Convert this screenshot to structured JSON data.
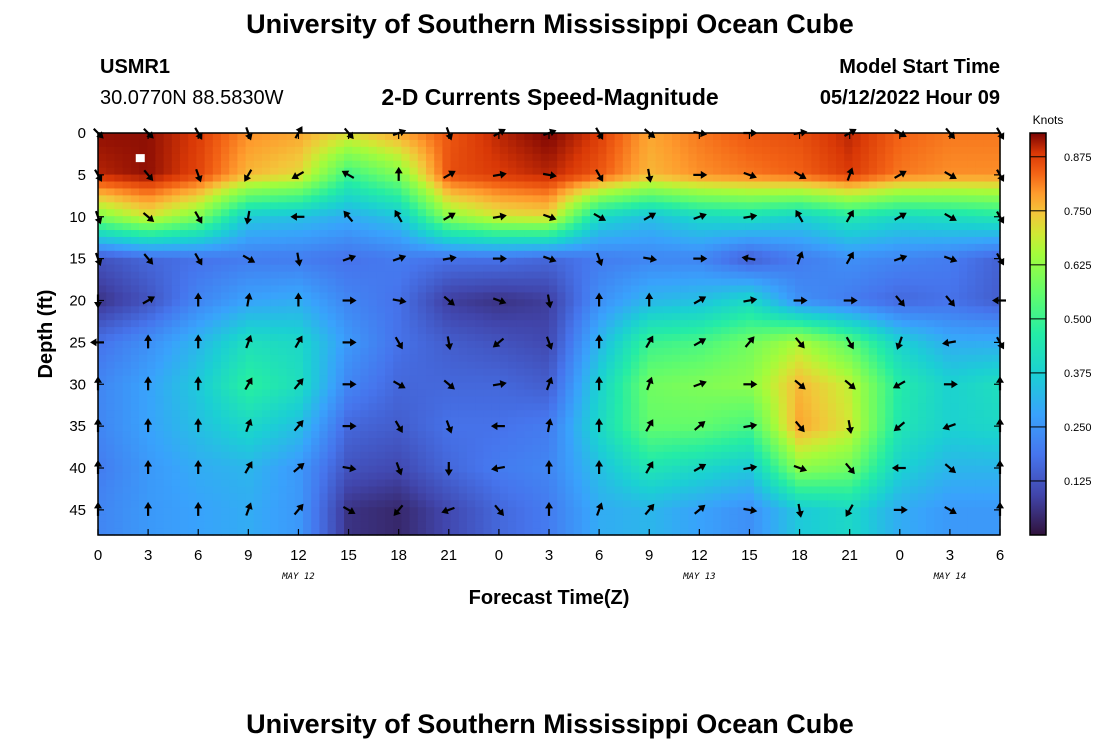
{
  "header": {
    "title": "University of Southern Mississippi Ocean Cube",
    "station_id": "USMR1",
    "station_coords": "30.0770N  88.5830W",
    "plot_title": "2-D Currents Speed-Magnitude",
    "model_start_label": "Model Start Time",
    "model_start_value": "05/12/2022 Hour 09"
  },
  "footer": {
    "title": "University of Southern Mississippi Ocean Cube"
  },
  "chart_data": {
    "type": "heatmap",
    "title": "2-D Currents Speed-Magnitude",
    "xlabel": "Forecast Time(Z)",
    "ylabel": "Depth (ft)",
    "x_ticks": [
      "0",
      "3",
      "6",
      "9",
      "12",
      "15",
      "18",
      "21",
      "0",
      "3",
      "6",
      "9",
      "12",
      "15",
      "18",
      "21",
      "0",
      "3",
      "6"
    ],
    "x_range_hours": [
      0,
      54
    ],
    "date_labels": [
      {
        "text": "MAY 12",
        "hour": 12
      },
      {
        "text": "MAY 13",
        "hour": 36
      },
      {
        "text": "MAY 14",
        "hour": 51
      }
    ],
    "y_ticks": [
      0,
      5,
      10,
      15,
      20,
      25,
      30,
      35,
      40,
      45
    ],
    "y_range": [
      0,
      48
    ],
    "y_inverted": true,
    "colorbar": {
      "label": "Knots",
      "ticks": [
        0.125,
        0.25,
        0.375,
        0.5,
        0.625,
        0.75,
        0.875
      ],
      "tick_labels": [
        "0.125",
        "0.250",
        "0.375",
        "0.500",
        "0.625",
        "0.750",
        "0.875"
      ],
      "range": [
        0.0,
        0.93
      ]
    },
    "grid_hours": [
      0,
      3,
      6,
      9,
      12,
      15,
      18,
      21,
      24,
      27,
      30,
      33,
      36,
      39,
      42,
      45,
      48,
      51,
      54
    ],
    "grid_depths": [
      0,
      5,
      10,
      15,
      20,
      25,
      30,
      35,
      40,
      45
    ],
    "speed_knots": [
      [
        0.92,
        0.92,
        0.88,
        0.8,
        0.78,
        0.72,
        0.78,
        0.85,
        0.9,
        0.93,
        0.88,
        0.78,
        0.82,
        0.85,
        0.86,
        0.9,
        0.84,
        0.82,
        0.82
      ],
      [
        0.9,
        0.92,
        0.87,
        0.76,
        0.72,
        0.5,
        0.6,
        0.86,
        0.88,
        0.9,
        0.85,
        0.76,
        0.8,
        0.82,
        0.84,
        0.88,
        0.82,
        0.8,
        0.8
      ],
      [
        0.6,
        0.7,
        0.6,
        0.36,
        0.34,
        0.3,
        0.35,
        0.62,
        0.7,
        0.72,
        0.4,
        0.34,
        0.4,
        0.42,
        0.38,
        0.45,
        0.4,
        0.42,
        0.45
      ],
      [
        0.12,
        0.16,
        0.18,
        0.2,
        0.2,
        0.18,
        0.2,
        0.18,
        0.18,
        0.16,
        0.2,
        0.22,
        0.22,
        0.14,
        0.2,
        0.24,
        0.22,
        0.2,
        0.15
      ],
      [
        0.06,
        0.12,
        0.22,
        0.28,
        0.3,
        0.22,
        0.18,
        0.08,
        0.06,
        0.08,
        0.24,
        0.32,
        0.34,
        0.4,
        0.24,
        0.2,
        0.16,
        0.18,
        0.14
      ],
      [
        0.18,
        0.24,
        0.32,
        0.42,
        0.4,
        0.26,
        0.18,
        0.14,
        0.12,
        0.1,
        0.32,
        0.5,
        0.52,
        0.58,
        0.66,
        0.55,
        0.38,
        0.3,
        0.3
      ],
      [
        0.22,
        0.28,
        0.36,
        0.48,
        0.42,
        0.22,
        0.16,
        0.16,
        0.16,
        0.14,
        0.38,
        0.58,
        0.6,
        0.62,
        0.76,
        0.68,
        0.46,
        0.38,
        0.42
      ],
      [
        0.22,
        0.28,
        0.34,
        0.4,
        0.34,
        0.16,
        0.14,
        0.18,
        0.18,
        0.2,
        0.4,
        0.56,
        0.56,
        0.52,
        0.78,
        0.7,
        0.44,
        0.38,
        0.4
      ],
      [
        0.2,
        0.26,
        0.3,
        0.32,
        0.26,
        0.12,
        0.1,
        0.16,
        0.2,
        0.22,
        0.34,
        0.44,
        0.4,
        0.36,
        0.62,
        0.58,
        0.38,
        0.32,
        0.32
      ],
      [
        0.22,
        0.26,
        0.28,
        0.3,
        0.26,
        0.06,
        0.04,
        0.1,
        0.16,
        0.2,
        0.3,
        0.32,
        0.28,
        0.24,
        0.36,
        0.4,
        0.3,
        0.26,
        0.26
      ]
    ],
    "direction_deg": [
      [
        135,
        135,
        150,
        160,
        30,
        140,
        70,
        160,
        60,
        70,
        150,
        130,
        100,
        90,
        80,
        60,
        120,
        140,
        150
      ],
      [
        150,
        140,
        160,
        210,
        240,
        300,
        0,
        60,
        80,
        100,
        150,
        170,
        90,
        110,
        120,
        20,
        60,
        120,
        150
      ],
      [
        160,
        130,
        150,
        190,
        270,
        320,
        330,
        60,
        80,
        110,
        120,
        60,
        70,
        80,
        330,
        30,
        60,
        120,
        150
      ],
      [
        160,
        140,
        150,
        120,
        170,
        70,
        70,
        80,
        90,
        110,
        160,
        100,
        90,
        280,
        20,
        30,
        70,
        110,
        150
      ],
      [
        180,
        60,
        0,
        10,
        0,
        90,
        100,
        130,
        110,
        170,
        0,
        0,
        60,
        80,
        90,
        90,
        140,
        140,
        270
      ],
      [
        270,
        0,
        0,
        20,
        30,
        90,
        150,
        170,
        230,
        160,
        0,
        30,
        60,
        40,
        140,
        150,
        200,
        260,
        150
      ],
      [
        0,
        0,
        0,
        30,
        40,
        90,
        120,
        130,
        80,
        20,
        0,
        20,
        70,
        90,
        130,
        130,
        240,
        90,
        0
      ],
      [
        0,
        0,
        0,
        20,
        40,
        90,
        150,
        160,
        270,
        10,
        0,
        30,
        50,
        80,
        140,
        170,
        230,
        250,
        0
      ],
      [
        0,
        0,
        0,
        30,
        50,
        100,
        160,
        180,
        260,
        0,
        0,
        30,
        60,
        80,
        110,
        140,
        270,
        130,
        0
      ],
      [
        0,
        0,
        0,
        20,
        40,
        120,
        220,
        250,
        140,
        0,
        20,
        40,
        50,
        100,
        170,
        210,
        90,
        120,
        0
      ]
    ],
    "markers": [
      {
        "hour": 2.5,
        "depth": 3,
        "shape": "square",
        "color": "#ffffff"
      }
    ]
  }
}
